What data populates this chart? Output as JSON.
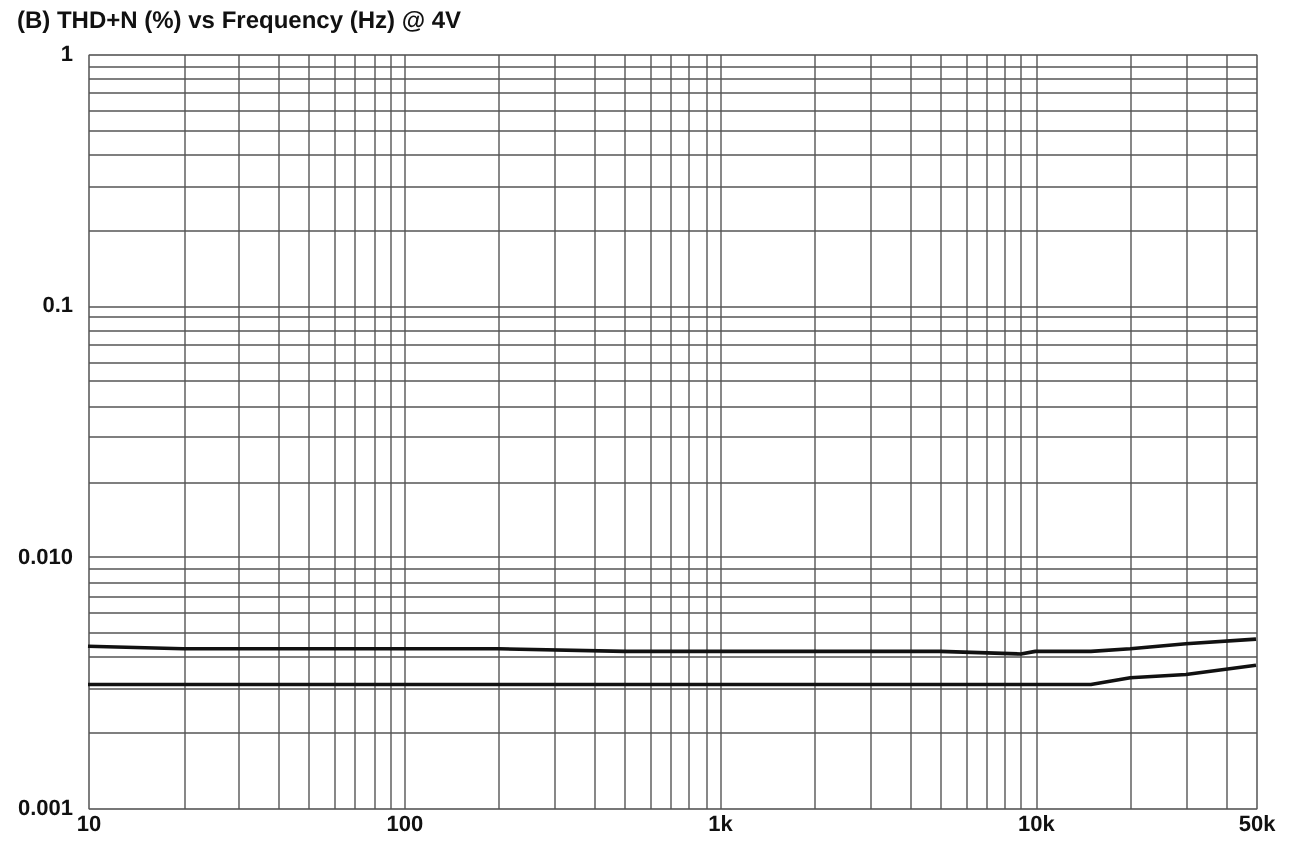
{
  "chart_data": {
    "type": "line",
    "title": "(B)  THD+N (%) vs Frequency (Hz) @ 4V",
    "log": "xy",
    "grid": true,
    "marker": "none",
    "line_style": "solid",
    "xlim": [
      10,
      50000
    ],
    "ylim": [
      0.001,
      1
    ],
    "xticks": [
      10,
      {
        "value": 20,
        "label": null
      },
      {
        "value": 30,
        "label": null
      },
      {
        "value": 40,
        "label": null
      },
      {
        "value": 50,
        "label": null
      },
      {
        "value": 60,
        "label": null
      },
      {
        "value": 70,
        "label": null
      },
      {
        "value": 80,
        "label": null
      },
      {
        "value": 90,
        "label": null
      },
      100,
      {
        "value": 200,
        "label": null
      },
      {
        "value": 300,
        "label": null
      },
      {
        "value": 400,
        "label": null
      },
      {
        "value": 500,
        "label": null
      },
      {
        "value": 600,
        "label": null
      },
      {
        "value": 700,
        "label": null
      },
      {
        "value": 800,
        "label": null
      },
      {
        "value": 900,
        "label": null
      },
      {
        "value": 1000,
        "label": "1k"
      },
      {
        "value": 2000,
        "label": null
      },
      {
        "value": 3000,
        "label": null
      },
      {
        "value": 4000,
        "label": null
      },
      {
        "value": 5000,
        "label": null
      },
      {
        "value": 6000,
        "label": null
      },
      {
        "value": 7000,
        "label": null
      },
      {
        "value": 8000,
        "label": null
      },
      {
        "value": 9000,
        "label": null
      },
      {
        "value": 10000,
        "label": "10k"
      },
      {
        "value": 20000,
        "label": null
      },
      {
        "value": 30000,
        "label": null
      },
      {
        "value": 40000,
        "label": null
      },
      {
        "value": 50000,
        "label": "50k"
      }
    ],
    "yticks": [
      0.001,
      {
        "value": 0.002,
        "label": null
      },
      {
        "value": 0.003,
        "label": null
      },
      {
        "value": 0.004,
        "label": null
      },
      {
        "value": 0.005,
        "label": null
      },
      {
        "value": 0.006,
        "label": null
      },
      {
        "value": 0.007,
        "label": null
      },
      {
        "value": 0.008,
        "label": null
      },
      {
        "value": 0.009,
        "label": null
      },
      {
        "value": 0.01,
        "label": "0.010"
      },
      {
        "value": 0.02,
        "label": null
      },
      {
        "value": 0.03,
        "label": null
      },
      {
        "value": 0.04,
        "label": null
      },
      {
        "value": 0.05,
        "label": null
      },
      {
        "value": 0.06,
        "label": null
      },
      {
        "value": 0.07,
        "label": null
      },
      {
        "value": 0.08,
        "label": null
      },
      {
        "value": 0.09,
        "label": null
      },
      0.1,
      {
        "value": 0.2,
        "label": null
      },
      {
        "value": 0.3,
        "label": null
      },
      {
        "value": 0.4,
        "label": null
      },
      {
        "value": 0.5,
        "label": null
      },
      {
        "value": 0.6,
        "label": null
      },
      {
        "value": 0.7,
        "label": null
      },
      {
        "value": 0.8,
        "label": null
      },
      {
        "value": 0.9,
        "label": null
      },
      1
    ],
    "x": [
      10,
      20,
      50,
      100,
      200,
      500,
      1000,
      2000,
      5000,
      9000,
      10000,
      15000,
      20000,
      30000,
      50000
    ],
    "series": [
      {
        "color": "#111111",
        "values": [
          0.0044,
          0.0043,
          0.0043,
          0.0043,
          0.0043,
          0.0042,
          0.0042,
          0.0042,
          0.0042,
          0.0041,
          0.0042,
          0.0042,
          0.0043,
          0.0045,
          0.0047
        ]
      },
      {
        "color": "#111111",
        "values": [
          0.0031,
          0.0031,
          0.0031,
          0.0031,
          0.0031,
          0.0031,
          0.0031,
          0.0031,
          0.0031,
          0.0031,
          0.0031,
          0.0031,
          0.0033,
          0.0034,
          0.0037
        ]
      }
    ]
  }
}
